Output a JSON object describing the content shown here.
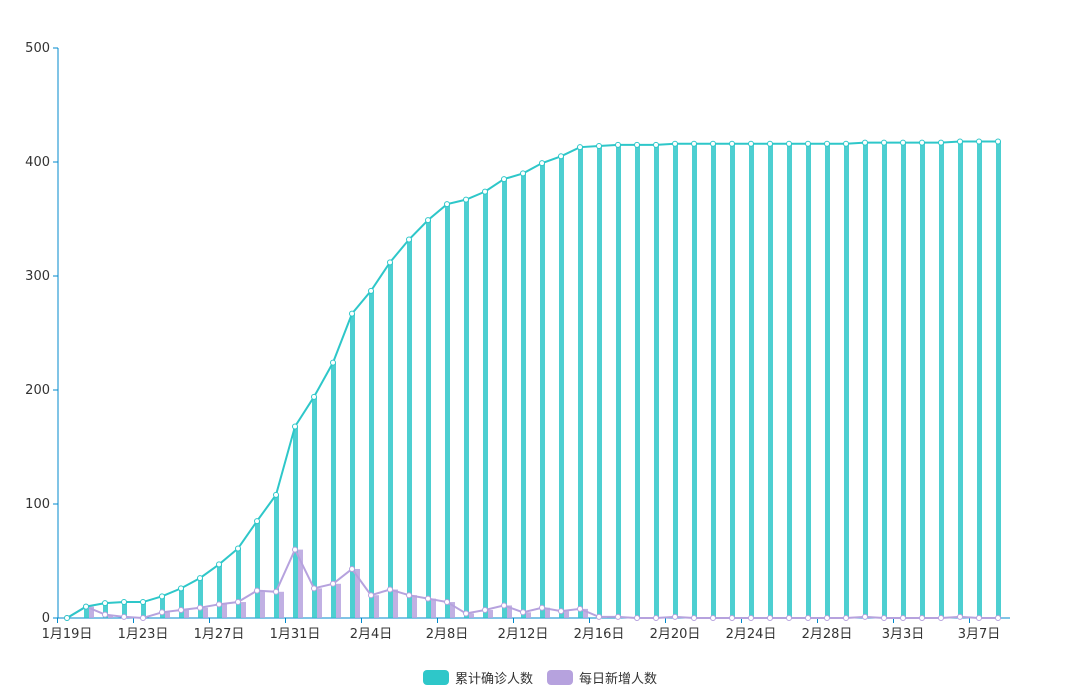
{
  "chart_data": {
    "type": "bar+line",
    "title": "",
    "xlabel": "",
    "ylabel": "",
    "ylim": [
      0,
      500
    ],
    "yticks": [
      "0",
      "100",
      "200",
      "300",
      "400",
      "500"
    ],
    "x": [
      "1月19日",
      "1月20日",
      "1月21日",
      "1月22日",
      "1月23日",
      "1月24日",
      "1月25日",
      "1月26日",
      "1月27日",
      "1月28日",
      "1月29日",
      "1月30日",
      "1月31日",
      "2月1日",
      "2月2日",
      "2月3日",
      "2月4日",
      "2月5日",
      "2月6日",
      "2月7日",
      "2月8日",
      "2月9日",
      "2月10日",
      "2月11日",
      "2月12日",
      "2月13日",
      "2月14日",
      "2月15日",
      "2月16日",
      "2月17日",
      "2月18日",
      "2月19日",
      "2月20日",
      "2月21日",
      "2月22日",
      "2月23日",
      "2月24日",
      "2月25日",
      "2月26日",
      "2月27日",
      "2月28日",
      "2月29日",
      "3月1日",
      "3月2日",
      "3月3日",
      "3月4日",
      "3月5日",
      "3月6日",
      "3月7日",
      "3月8日"
    ],
    "xtick_every": 4,
    "legend_position": "bottom",
    "series": [
      {
        "name": "累计确诊人数",
        "color": "#2ec7c9",
        "values": [
          0,
          10,
          13,
          14,
          14,
          19,
          26,
          35,
          47,
          61,
          85,
          108,
          168,
          194,
          224,
          267,
          287,
          312,
          332,
          349,
          363,
          367,
          374,
          385,
          390,
          399,
          405,
          413,
          414,
          415,
          415,
          415,
          416,
          416,
          416,
          416,
          416,
          416,
          416,
          416,
          416,
          416,
          417,
          417,
          417,
          417,
          417,
          418,
          418,
          418
        ]
      },
      {
        "name": "每日新增人数",
        "color": "#b6a2de",
        "values": [
          0,
          10,
          3,
          1,
          0,
          5,
          7,
          9,
          12,
          14,
          24,
          23,
          60,
          26,
          30,
          43,
          20,
          25,
          20,
          17,
          14,
          4,
          7,
          11,
          5,
          9,
          6,
          8,
          1,
          1,
          0,
          0,
          1,
          0,
          0,
          0,
          0,
          0,
          0,
          0,
          0,
          0,
          1,
          0,
          0,
          0,
          0,
          1,
          0,
          0
        ]
      }
    ]
  }
}
